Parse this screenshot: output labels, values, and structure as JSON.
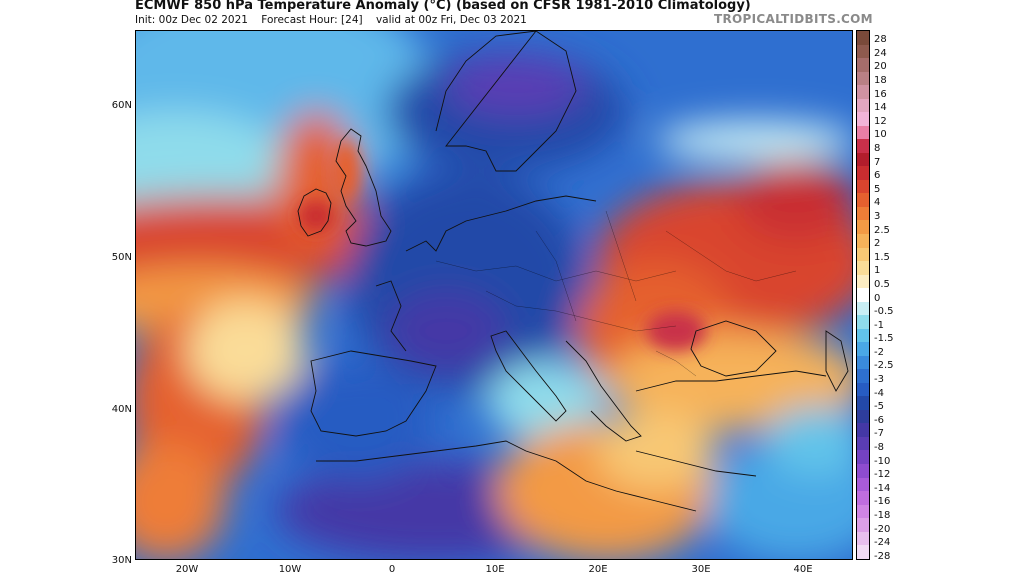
{
  "title": "ECMWF 850 hPa Temperature Anomaly (°C) (based on CFSR 1981-2010 Climatology)",
  "subtitle": {
    "init": "Init: 00z Dec 02 2021",
    "forecast_hour": "Forecast Hour: [24]",
    "valid": "valid at 00z Fri, Dec 03 2021"
  },
  "brand": "TROPICALTIDBITS.COM",
  "map": {
    "lat_labels": [
      "60N",
      "50N",
      "40N",
      "30N"
    ],
    "lon_labels": [
      "20W",
      "10W",
      "0",
      "10E",
      "20E",
      "30E",
      "40E"
    ],
    "lat_range": [
      30,
      65
    ],
    "lon_range": [
      -25,
      45
    ]
  },
  "colorbar": {
    "labels": [
      "28",
      "24",
      "20",
      "18",
      "16",
      "14",
      "12",
      "10",
      "8",
      "7",
      "6",
      "5",
      "4",
      "3",
      "2.5",
      "2",
      "1.5",
      "1",
      "0.5",
      "0",
      "-0.5",
      "-1",
      "-1.5",
      "-2",
      "-2.5",
      "-3",
      "-4",
      "-5",
      "-6",
      "-7",
      "-8",
      "-10",
      "-12",
      "-14",
      "-16",
      "-18",
      "-20",
      "-24",
      "-28"
    ],
    "colors": [
      "#7a4a3a",
      "#8e5a4e",
      "#a56d6b",
      "#b98085",
      "#cf92a2",
      "#e3a6c0",
      "#f2b4d8",
      "#e97fa6",
      "#c9304a",
      "#b21d2c",
      "#c92d30",
      "#d9442e",
      "#e5602f",
      "#ee7d37",
      "#f39a45",
      "#f6b25a",
      "#f8c875",
      "#fadc98",
      "#fcecc2",
      "#ffffff",
      "#c9eef4",
      "#8fdceb",
      "#62c4ea",
      "#4aa8e6",
      "#3a8bdc",
      "#2e70cf",
      "#275cc2",
      "#2349a8",
      "#2e3d9c",
      "#4438a6",
      "#5a3db4",
      "#7442c2",
      "#8e4ccf",
      "#a85bd9",
      "#bf6ddf",
      "#cf84e4",
      "#dc9fe7",
      "#e8bfee",
      "#f2dcf5"
    ]
  }
}
